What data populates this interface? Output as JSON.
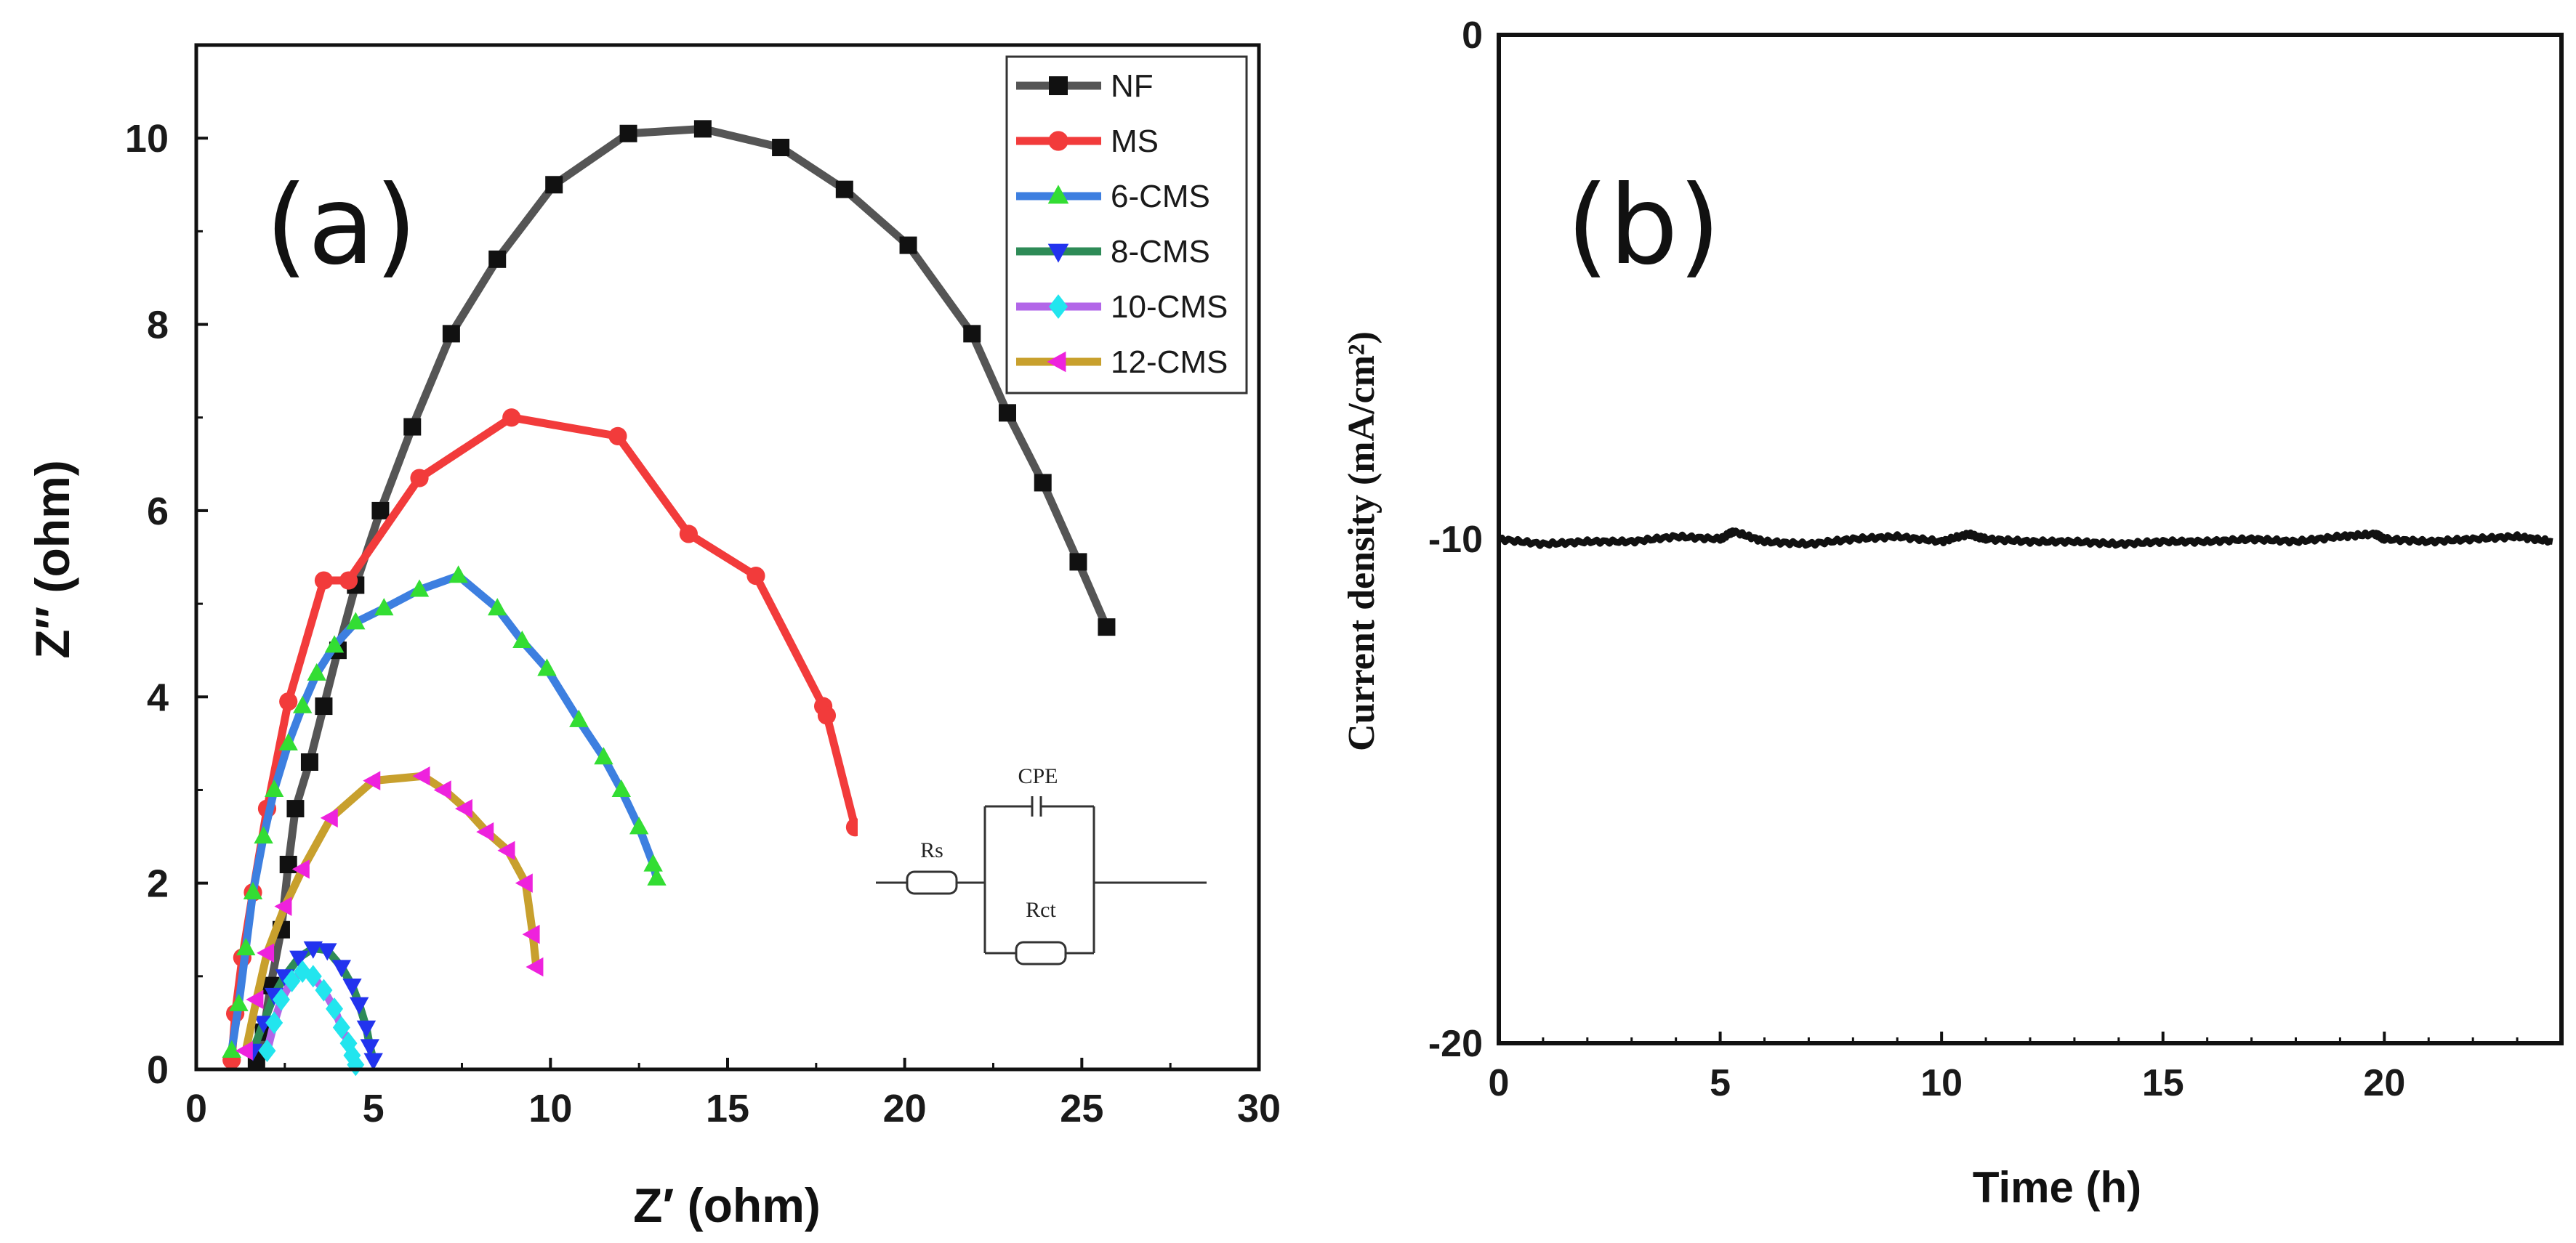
{
  "chart_data": [
    {
      "type": "line",
      "panel_label": "(a)",
      "xlabel": "Z′ (ohm)",
      "ylabel": "Z′′ (ohm)",
      "xlim": [
        0,
        30
      ],
      "ylim": [
        0,
        11
      ],
      "xticks": [
        0,
        5,
        10,
        15,
        20,
        25,
        30
      ],
      "yticks": [
        0,
        2,
        4,
        6,
        8,
        10
      ],
      "legend_position": "top-right",
      "series": [
        {
          "name": "NF",
          "color": "#555555",
          "marker": "square",
          "x": [
            1.7,
            1.9,
            2.1,
            2.4,
            2.6,
            2.8,
            3.2,
            3.6,
            4.0,
            4.5,
            5.2,
            6.1,
            7.2,
            8.5,
            10.1,
            12.2,
            14.3,
            16.5,
            18.3,
            20.1,
            21.9,
            22.9,
            23.9,
            24.9,
            25.7
          ],
          "y": [
            0.1,
            0.4,
            0.9,
            1.5,
            2.2,
            2.8,
            3.3,
            3.9,
            4.5,
            5.2,
            6.0,
            6.9,
            7.9,
            8.7,
            9.5,
            10.05,
            10.1,
            9.9,
            9.45,
            8.85,
            7.9,
            7.05,
            6.3,
            5.45,
            4.75
          ],
          "values": [
            0.1,
            0.4,
            0.9,
            1.5,
            2.2,
            2.8,
            3.3,
            3.9,
            4.5,
            5.2,
            6.0,
            6.9,
            7.9,
            8.7,
            9.5,
            10.05,
            10.1,
            9.9,
            9.45,
            8.85,
            7.9,
            7.05,
            6.3,
            5.45,
            4.75
          ]
        },
        {
          "name": "MS",
          "color": "#f23b3b",
          "marker": "circle",
          "x": [
            1.0,
            1.1,
            1.3,
            1.6,
            2.0,
            2.6,
            3.6,
            4.3,
            6.3,
            8.9,
            11.9,
            13.9,
            15.8,
            17.7,
            17.8,
            18.6
          ],
          "y": [
            0.1,
            0.6,
            1.2,
            1.9,
            2.8,
            3.95,
            5.25,
            5.25,
            6.35,
            7.0,
            6.8,
            5.75,
            5.3,
            3.9,
            3.8,
            2.6
          ],
          "values": [
            0.1,
            0.6,
            1.2,
            1.9,
            2.8,
            3.95,
            5.25,
            5.25,
            6.35,
            7.0,
            6.8,
            5.75,
            5.3,
            3.9,
            3.8,
            2.6
          ]
        },
        {
          "name": "6-CMS",
          "color": "#3d7fe0",
          "marker": "triangle-up",
          "marker_color": "#33dd33",
          "x": [
            1.0,
            1.2,
            1.4,
            1.6,
            1.9,
            2.2,
            2.6,
            3.0,
            3.4,
            3.9,
            4.5,
            5.3,
            6.3,
            7.4,
            8.5,
            9.2,
            9.9,
            10.8,
            11.5,
            12.0,
            12.5,
            12.9,
            13.0
          ],
          "y": [
            0.2,
            0.7,
            1.3,
            1.9,
            2.5,
            3.0,
            3.5,
            3.9,
            4.25,
            4.55,
            4.8,
            4.95,
            5.15,
            5.3,
            4.95,
            4.6,
            4.3,
            3.75,
            3.35,
            3.0,
            2.6,
            2.2,
            2.05
          ],
          "values": [
            0.2,
            0.7,
            1.3,
            1.9,
            2.5,
            3.0,
            3.5,
            3.9,
            4.25,
            4.55,
            4.8,
            4.95,
            5.15,
            5.3,
            4.95,
            4.6,
            4.3,
            3.75,
            3.35,
            3.0,
            2.6,
            2.2,
            2.05
          ]
        },
        {
          "name": "8-CMS",
          "color": "#2e8b57",
          "marker": "triangle-down",
          "marker_color": "#2233ee",
          "x": [
            1.6,
            1.9,
            2.2,
            2.5,
            2.9,
            3.3,
            3.7,
            4.1,
            4.4,
            4.6,
            4.8,
            4.9,
            5.0
          ],
          "y": [
            0.2,
            0.5,
            0.8,
            1.0,
            1.2,
            1.3,
            1.28,
            1.1,
            0.9,
            0.7,
            0.45,
            0.25,
            0.1
          ],
          "values": [
            0.2,
            0.5,
            0.8,
            1.0,
            1.2,
            1.3,
            1.28,
            1.1,
            0.9,
            0.7,
            0.45,
            0.25,
            0.1
          ]
        },
        {
          "name": "10-CMS",
          "color": "#b266e8",
          "marker": "diamond",
          "marker_color": "#22e5ee",
          "x": [
            2.0,
            2.2,
            2.4,
            2.7,
            3.0,
            3.3,
            3.6,
            3.9,
            4.1,
            4.3,
            4.4,
            4.5
          ],
          "y": [
            0.2,
            0.5,
            0.75,
            0.95,
            1.05,
            1.0,
            0.85,
            0.65,
            0.45,
            0.28,
            0.15,
            0.05
          ],
          "values": [
            0.2,
            0.5,
            0.75,
            0.95,
            1.05,
            1.0,
            0.85,
            0.65,
            0.45,
            0.28,
            0.15,
            0.05
          ]
        },
        {
          "name": "12-CMS",
          "color": "#c8a02d",
          "marker": "triangle-left",
          "marker_color": "#ee22dd",
          "x": [
            1.4,
            1.7,
            2.0,
            2.5,
            3.0,
            3.8,
            5.0,
            6.4,
            7.0,
            7.6,
            8.2,
            8.8,
            9.3,
            9.5,
            9.6
          ],
          "y": [
            0.2,
            0.75,
            1.25,
            1.75,
            2.15,
            2.7,
            3.1,
            3.15,
            3.0,
            2.8,
            2.55,
            2.35,
            2.0,
            1.45,
            1.1
          ],
          "values": [
            0.2,
            0.75,
            1.25,
            1.75,
            2.15,
            2.7,
            3.1,
            3.15,
            3.0,
            2.8,
            2.55,
            2.35,
            2.0,
            1.45,
            1.1
          ]
        }
      ],
      "inset_circuit": {
        "labels": [
          "CPE",
          "Rs",
          "Rct"
        ]
      }
    },
    {
      "type": "line",
      "panel_label": "(b)",
      "xlabel": "Time (h)",
      "ylabel": "Current density (mA/cm²)",
      "xlim": [
        0,
        24
      ],
      "ylim": [
        -20,
        0
      ],
      "xticks": [
        0,
        5,
        10,
        15,
        20
      ],
      "yticks": [
        0,
        -10,
        -20
      ],
      "series": [
        {
          "name": "current",
          "color": "#111111",
          "x": [
            0,
            1,
            2,
            3,
            4,
            5,
            5.3,
            6,
            7,
            8,
            9,
            10,
            10.6,
            11,
            12,
            13,
            14,
            15,
            16,
            17,
            18,
            19,
            19.8,
            20,
            21,
            22,
            23,
            23.8
          ],
          "y": [
            -10.0,
            -10.1,
            -10.05,
            -10.05,
            -9.95,
            -10.0,
            -9.85,
            -10.05,
            -10.1,
            -10.0,
            -9.95,
            -10.05,
            -9.9,
            -10.0,
            -10.05,
            -10.05,
            -10.1,
            -10.05,
            -10.05,
            -10.0,
            -10.05,
            -9.95,
            -9.9,
            -10.0,
            -10.05,
            -10.0,
            -9.95,
            -10.05
          ],
          "values": [
            -10.0,
            -10.1,
            -10.05,
            -10.05,
            -9.95,
            -10.0,
            -9.85,
            -10.05,
            -10.1,
            -10.0,
            -9.95,
            -10.05,
            -9.9,
            -10.0,
            -10.05,
            -10.05,
            -10.1,
            -10.05,
            -10.05,
            -10.0,
            -10.05,
            -9.95,
            -9.9,
            -10.0,
            -10.05,
            -10.0,
            -9.95,
            -10.05
          ]
        }
      ]
    }
  ]
}
